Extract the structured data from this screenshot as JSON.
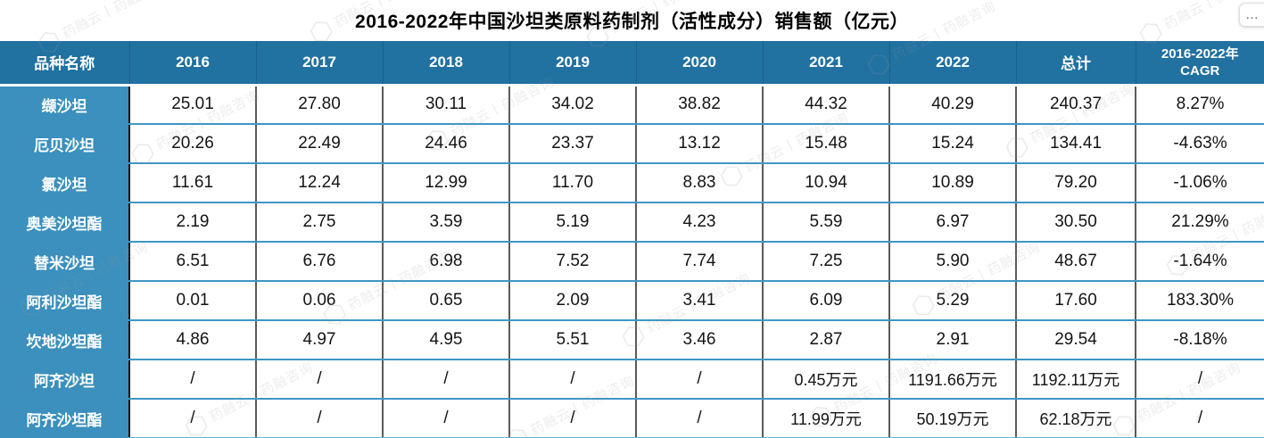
{
  "title": "2016-2022年中国沙坦类原料药制剂（活性成分）销售额（亿元）",
  "ui": {
    "more_button_label": "…"
  },
  "watermark": {
    "logo_glyph": "⬡",
    "text": "药融云丨药融咨询"
  },
  "chart_data": {
    "type": "table",
    "title": "2016-2022年中国沙坦类原料药制剂（活性成分）销售额（亿元）",
    "columns": [
      "品种名称",
      "2016",
      "2017",
      "2018",
      "2019",
      "2020",
      "2021",
      "2022",
      "总计"
    ],
    "cagr_header": {
      "line1": "2016-2022年",
      "line2": "CAGR"
    },
    "rows": [
      {
        "name": "缬沙坦",
        "values": [
          "25.01",
          "27.80",
          "30.11",
          "34.02",
          "38.82",
          "44.32",
          "40.29",
          "240.37",
          "8.27%"
        ]
      },
      {
        "name": "厄贝沙坦",
        "values": [
          "20.26",
          "22.49",
          "24.46",
          "23.37",
          "13.12",
          "15.48",
          "15.24",
          "134.41",
          "-4.63%"
        ]
      },
      {
        "name": "氯沙坦",
        "values": [
          "11.61",
          "12.24",
          "12.99",
          "11.70",
          "8.83",
          "10.94",
          "10.89",
          "79.20",
          "-1.06%"
        ]
      },
      {
        "name": "奥美沙坦酯",
        "values": [
          "2.19",
          "2.75",
          "3.59",
          "5.19",
          "4.23",
          "5.59",
          "6.97",
          "30.50",
          "21.29%"
        ]
      },
      {
        "name": "替米沙坦",
        "values": [
          "6.51",
          "6.76",
          "6.98",
          "7.52",
          "7.74",
          "7.25",
          "5.90",
          "48.67",
          "-1.64%"
        ]
      },
      {
        "name": "阿利沙坦酯",
        "values": [
          "0.01",
          "0.06",
          "0.65",
          "2.09",
          "3.41",
          "6.09",
          "5.29",
          "17.60",
          "183.30%"
        ]
      },
      {
        "name": "坎地沙坦酯",
        "values": [
          "4.86",
          "4.97",
          "4.95",
          "5.51",
          "3.46",
          "2.87",
          "2.91",
          "29.54",
          "-8.18%"
        ]
      },
      {
        "name": "阿齐沙坦",
        "values": [
          "/",
          "/",
          "/",
          "/",
          "/",
          "0.45万元",
          "1191.66万元",
          "1192.11万元",
          "/"
        ]
      },
      {
        "name": "阿齐沙坦酯",
        "values": [
          "/",
          "/",
          "/",
          "/",
          "/",
          "11.99万元",
          "50.19万元",
          "62.18万元",
          "/"
        ]
      }
    ]
  }
}
